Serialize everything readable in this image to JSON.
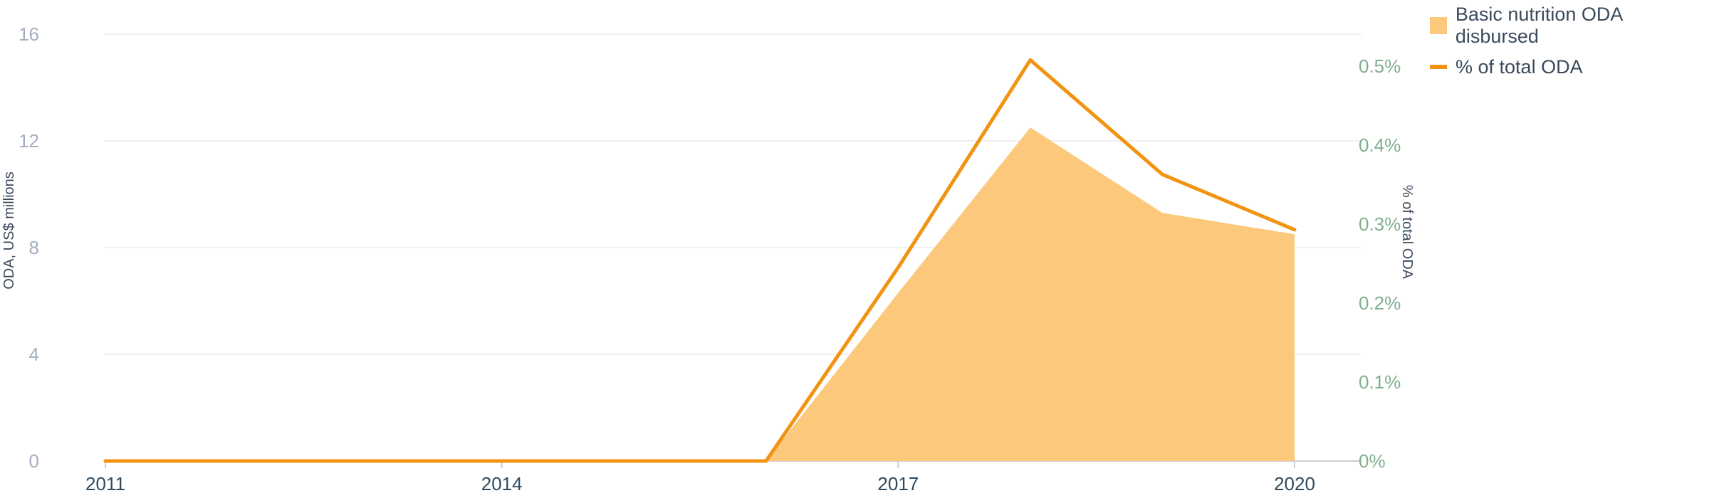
{
  "chart_data": {
    "type": "area",
    "x": [
      2011,
      2012,
      2013,
      2014,
      2015,
      2016,
      2017,
      2018,
      2019,
      2020
    ],
    "xticks": [
      "2011",
      "2014",
      "2017",
      "2020"
    ],
    "series": [
      {
        "name": "Basic nutrition ODA disbursed",
        "type": "area",
        "axis": "left",
        "color": "#fbc87c",
        "values": [
          0,
          0,
          0,
          0,
          0,
          0,
          6.3,
          12.5,
          9.3,
          8.5
        ]
      },
      {
        "name": "% of total ODA",
        "type": "line",
        "axis": "right",
        "color": "#f29311",
        "values": [
          0,
          0,
          0,
          0,
          0,
          0,
          0.245,
          0.508,
          0.363,
          0.293
        ]
      }
    ],
    "y_left": {
      "label": "ODA, US$ millions",
      "ylim": [
        0,
        16
      ],
      "ticks": [
        "0",
        "4",
        "8",
        "12",
        "16"
      ]
    },
    "y_right": {
      "label": "% of total ODA",
      "ylim": [
        0,
        0.52
      ],
      "ticks": [
        "0%",
        "0.1%",
        "0.2%",
        "0.3%",
        "0.4%",
        "0.5%"
      ]
    },
    "grid": true,
    "legend": "top-right"
  },
  "colors": {
    "left_tick": "#a4aec0",
    "right_tick": "#7fae8e",
    "x_tick": "#2f4a5f",
    "grid": "#ececec"
  }
}
